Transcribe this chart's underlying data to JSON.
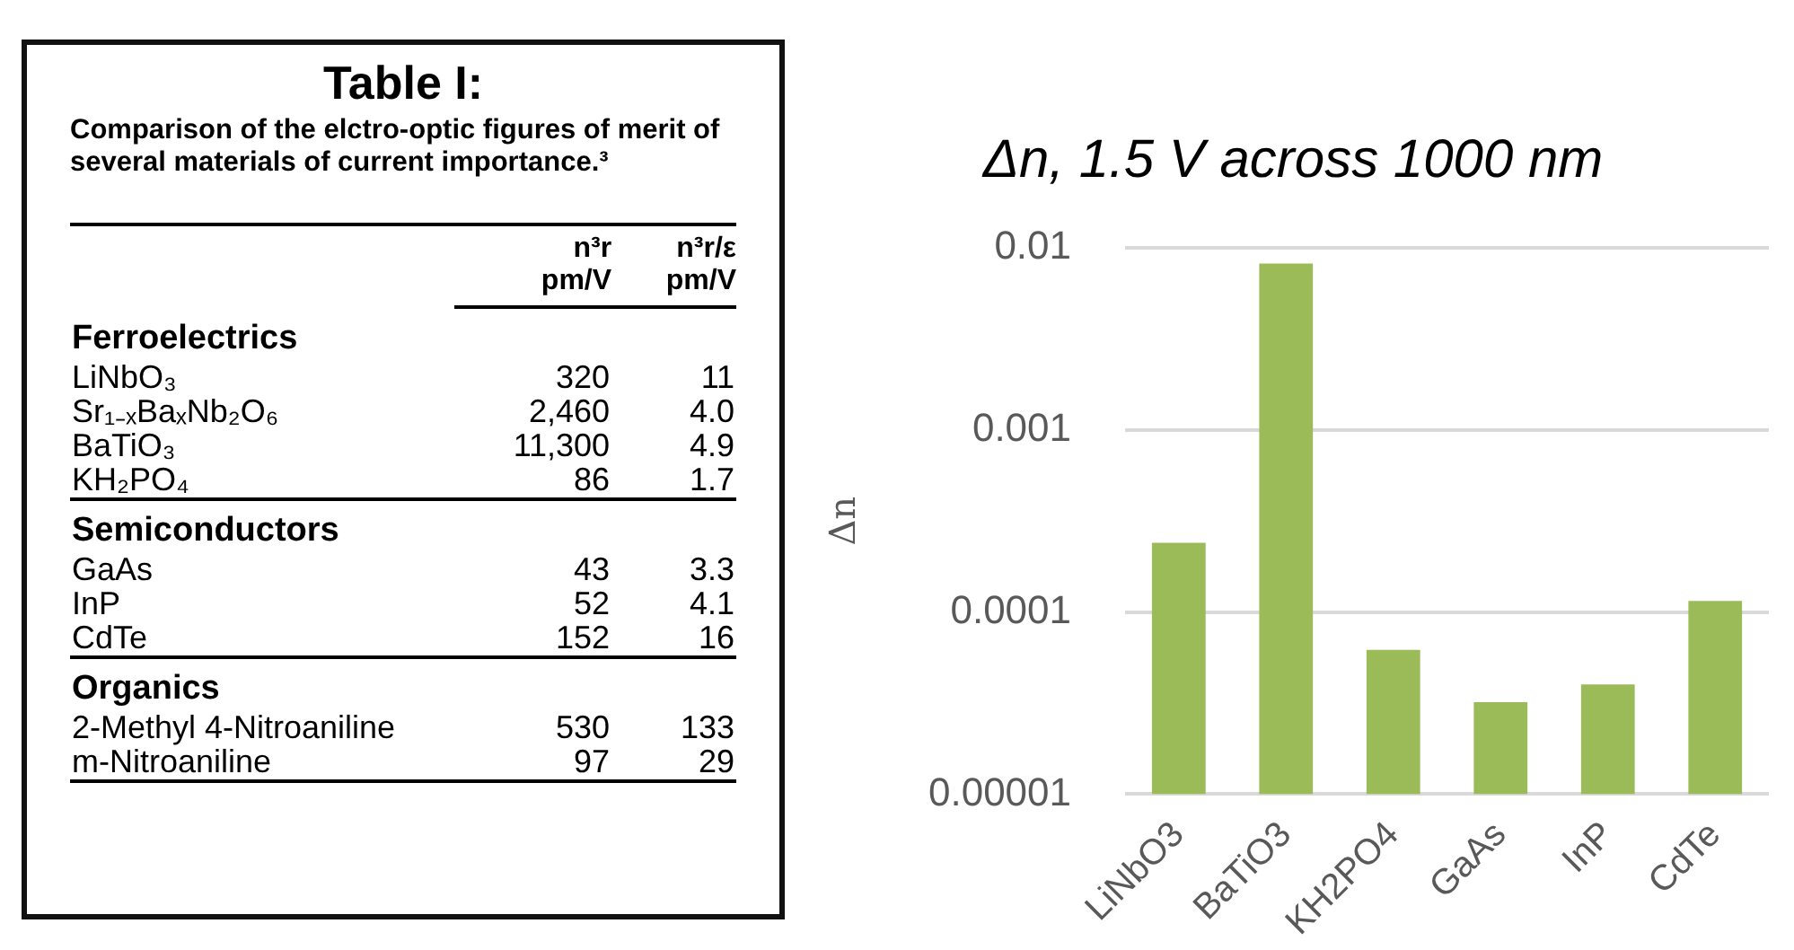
{
  "chart_data": [
    {
      "type": "other",
      "title": "Table I:",
      "subtitle": "Comparison of the elctro-optic figures of merit of several materials of current importance.³",
      "categories": [
        "LiNbO₃",
        "Sr₁₋ₓBaₓNb₂O₆",
        "BaTiO₃",
        "KH₂PO₄",
        "GaAs",
        "InP",
        "CdTe",
        "2-Methyl 4-Nitroaniline",
        "m-Nitroaniline"
      ],
      "series": [
        {
          "name": "n³r\npm/V",
          "values": [
            320,
            2460,
            11300,
            86,
            43,
            52,
            152,
            530,
            97
          ],
          "value_labels": [
            "320",
            "2,460",
            "11,300",
            "86",
            "43",
            "52",
            "152",
            "530",
            "97"
          ]
        },
        {
          "name": "n³r/ε\npm/V",
          "values": [
            11,
            4.0,
            4.9,
            1.7,
            3.3,
            4.1,
            16,
            133,
            29
          ],
          "value_labels": [
            "11",
            "4.0",
            "4.9",
            "1.7",
            "3.3",
            "4.1",
            "16",
            "133",
            "29"
          ]
        }
      ],
      "annotations": [
        {
          "text": "Ferroelectrics",
          "y": "LiNbO₃"
        },
        {
          "text": "Semiconductors",
          "y": "GaAs"
        },
        {
          "text": "Organics",
          "y": "2-Methyl 4-Nitroaniline"
        }
      ]
    },
    {
      "type": "bar",
      "title": "Δn, 1.5 V across 1000 nm",
      "ylabel": "Δn",
      "categories": [
        "LiNbO3",
        "BaTiO3",
        "KH2PO4",
        "GaAs",
        "InP",
        "CdTe"
      ],
      "values": [
        0.00024,
        0.0082,
        6.2e-05,
        3.2e-05,
        4e-05,
        0.000115
      ],
      "color": "#9bbb59",
      "log": "y",
      "ylim": [
        1e-05,
        0.01
      ],
      "yticks": [
        {
          "value": 1e-05,
          "label": "0.00001"
        },
        0.0001,
        0.001,
        0.01
      ],
      "grid": "y",
      "legend": false
    }
  ]
}
